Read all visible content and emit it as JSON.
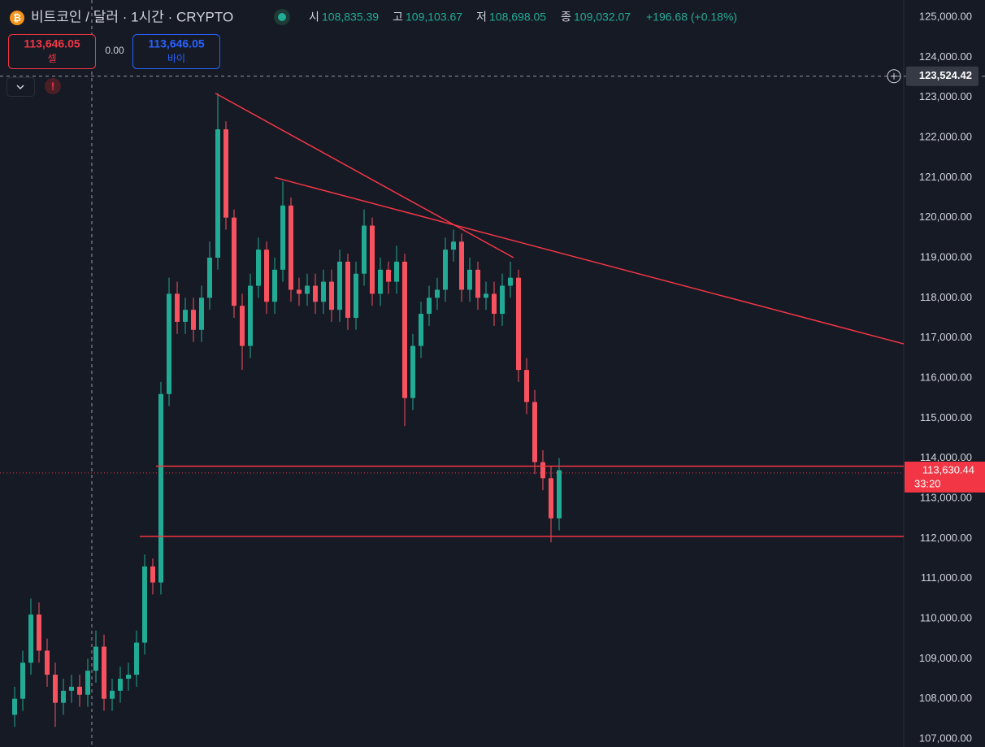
{
  "header": {
    "symbol": "비트코인 / 달러 · 1시간 · CRYPTO",
    "ohlc": [
      {
        "label": "시",
        "value": "108,835.39"
      },
      {
        "label": "고",
        "value": "109,103.67"
      },
      {
        "label": "저",
        "value": "108,698.05"
      },
      {
        "label": "종",
        "value": "109,032.07"
      }
    ],
    "change": "+196.68 (+0.18%)"
  },
  "trade": {
    "sell_price": "113,646.05",
    "sell_label": "셀",
    "spread": "0.00",
    "buy_price": "113,646.05",
    "buy_label": "바이"
  },
  "chart_data": {
    "type": "candlestick",
    "grid": false,
    "colors": {
      "up": "#22ab94",
      "down": "#f7525f",
      "line": "#f23645"
    },
    "xlim": [
      -0.8,
      109.4
    ],
    "ylim": [
      107000,
      125000
    ],
    "yticks": [
      {
        "value": 107000,
        "label": "107,000.00"
      },
      {
        "value": 108000,
        "label": "108,000.00"
      },
      {
        "value": 109000,
        "label": "109,000.00"
      },
      {
        "value": 110000,
        "label": "110,000.00"
      },
      {
        "value": 111000,
        "label": "111,000.00"
      },
      {
        "value": 112000,
        "label": "112,000.00"
      },
      {
        "value": 113000,
        "label": "113,000.00"
      },
      {
        "value": 114000,
        "label": "114,000.00"
      },
      {
        "value": 115000,
        "label": "115,000.00"
      },
      {
        "value": 116000,
        "label": "116,000.00"
      },
      {
        "value": 117000,
        "label": "117,000.00"
      },
      {
        "value": 118000,
        "label": "118,000.00"
      },
      {
        "value": 119000,
        "label": "119,000.00"
      },
      {
        "value": 120000,
        "label": "120,000.00"
      },
      {
        "value": 121000,
        "label": "121,000.00"
      },
      {
        "value": 122000,
        "label": "122,000.00"
      },
      {
        "value": 123000,
        "label": "123,000.00"
      },
      {
        "value": 124000,
        "label": "124,000.00"
      },
      {
        "value": 125000,
        "label": "125,000.00"
      }
    ],
    "open": [
      107600,
      108000,
      108900,
      110100,
      109200,
      108600,
      107900,
      108200,
      108300,
      108100,
      108700,
      109300,
      108000,
      108200,
      108500,
      108600,
      109400,
      111300,
      110900,
      115600,
      118100,
      117400,
      117700,
      117200,
      118000,
      119000,
      122200,
      120000,
      117800,
      116800,
      118300,
      119200,
      117900,
      118700,
      120300,
      118200,
      118100,
      118300,
      117900,
      118400,
      117700,
      118900,
      117500,
      118600,
      119800,
      118100,
      118700,
      118400,
      118900,
      115500,
      116800,
      117600,
      118000,
      118200,
      119200,
      119400,
      118200,
      118700,
      118000,
      118100,
      117600,
      118300,
      118500,
      116200,
      115400,
      113900,
      113500,
      112500
    ],
    "high": [
      108300,
      109200,
      110500,
      110400,
      109500,
      108900,
      108500,
      108600,
      108600,
      109000,
      109700,
      109600,
      108500,
      108800,
      108900,
      109700,
      111600,
      111500,
      115900,
      118500,
      118400,
      118000,
      118000,
      118300,
      119400,
      123100,
      122400,
      120200,
      118100,
      118600,
      119500,
      119400,
      119000,
      120900,
      120500,
      118500,
      118600,
      118600,
      118700,
      118700,
      119200,
      119100,
      118900,
      120200,
      120000,
      119000,
      118900,
      119300,
      119100,
      117100,
      117900,
      118300,
      118500,
      119500,
      119700,
      119600,
      119000,
      118900,
      118400,
      118400,
      118600,
      118900,
      118700,
      116500,
      115700,
      114200,
      113800,
      114000
    ],
    "low": [
      107300,
      107700,
      108600,
      108900,
      108300,
      107300,
      107600,
      107900,
      107800,
      107800,
      108400,
      107700,
      107700,
      107900,
      108200,
      108300,
      109100,
      110600,
      110600,
      115300,
      117100,
      117100,
      116900,
      116900,
      117700,
      118700,
      119700,
      117500,
      116200,
      116500,
      118000,
      117600,
      117600,
      118400,
      117900,
      117800,
      117800,
      117600,
      117600,
      117400,
      117400,
      117200,
      117200,
      118300,
      117800,
      117800,
      118100,
      118100,
      114800,
      115200,
      116500,
      117300,
      117700,
      117900,
      118900,
      117900,
      117900,
      117700,
      117700,
      117300,
      117300,
      118000,
      115900,
      115100,
      113600,
      113200,
      111900,
      112200
    ],
    "close": [
      108000,
      108900,
      110100,
      109200,
      108600,
      107900,
      108200,
      108300,
      108100,
      108700,
      109300,
      108000,
      108200,
      108500,
      108600,
      109400,
      111300,
      110900,
      115600,
      118100,
      117400,
      117700,
      117200,
      118000,
      119000,
      122200,
      120000,
      117800,
      116800,
      118300,
      119200,
      117900,
      118700,
      120300,
      118200,
      118100,
      118300,
      117900,
      118400,
      117700,
      118900,
      117500,
      118600,
      119800,
      118100,
      118700,
      118400,
      118900,
      115500,
      116800,
      117600,
      118000,
      118200,
      119200,
      119400,
      118200,
      118700,
      118000,
      118100,
      117600,
      118300,
      118500,
      116200,
      115400,
      113900,
      113500,
      112500,
      113700
    ],
    "trendlines": [
      {
        "points": [
          [
            24.7,
            123100
          ],
          [
            61.4,
            119000
          ]
        ]
      },
      {
        "points": [
          [
            32,
            121000
          ],
          [
            109.4,
            116850
          ]
        ]
      },
      {
        "points": [
          [
            17.4,
            113800
          ],
          [
            109.4,
            113800
          ]
        ]
      },
      {
        "points": [
          [
            15.4,
            112050
          ],
          [
            109.4,
            112050
          ]
        ]
      }
    ],
    "crosshair": {
      "x": 9.5,
      "value": 123524.42,
      "label": "123,524.42"
    },
    "last_price": {
      "value": 113630.44,
      "label": "113,630.44",
      "countdown": "33:20"
    }
  }
}
